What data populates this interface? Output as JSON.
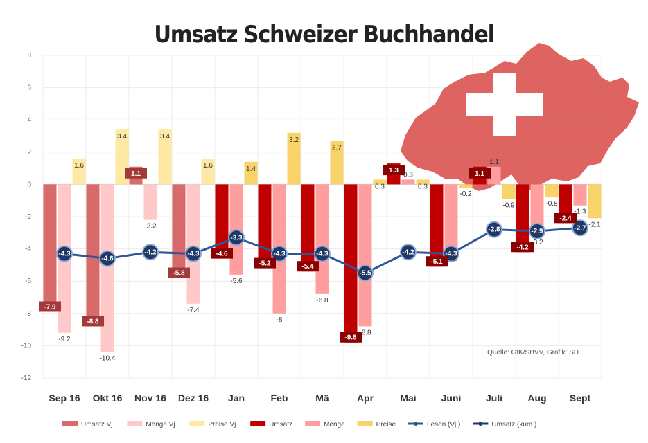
{
  "chart_data": {
    "type": "bar",
    "title": "Umsatz Schweizer Buchhandel",
    "source": "Quelle: GfK/SBVV, Grafik: SD",
    "categories": [
      "Sep 16",
      "Okt 16",
      "Nov 16",
      "Dez 16",
      "Jan",
      "Feb",
      "Mä",
      "Apr",
      "Mai",
      "Juni",
      "Juli",
      "Aug",
      "Sept"
    ],
    "ylim": [
      -12,
      8
    ],
    "yticks": [
      -12,
      -10,
      -8,
      -6,
      -4,
      -2,
      0,
      2,
      4,
      6,
      8
    ],
    "y2ticks": [
      "",
      "",
      "",
      "",
      "",
      "",
      "",
      "",
      "",
      "",
      ""
    ],
    "grid": true,
    "legend_position": "bottom",
    "colors": {
      "umsatz_prev": "#d96a6a",
      "menge_prev": "#ffc9c9",
      "preise_prev": "#fde8a4",
      "umsatz": "#c00000",
      "menge": "#ff9e9e",
      "preise": "#f8d36a",
      "line_prev": "#2f5597",
      "line": "#203864",
      "map": "#d9534f"
    },
    "series": [
      {
        "name": "Umsatz Vj.",
        "group": 0,
        "x": [
          "Sep 16",
          "Okt 16",
          "Nov 16",
          "Dez 16"
        ],
        "values": [
          -7.9,
          -8.8,
          1.1,
          -5.8
        ],
        "labels": [
          "-7.9",
          "-8.8",
          "1.1",
          "-5.8"
        ]
      },
      {
        "name": "Menge Vj.",
        "group": 1,
        "x": [
          "Sep 16",
          "Okt 16",
          "Nov 16",
          "Dez 16"
        ],
        "values": [
          -9.2,
          -10.4,
          -2.2,
          -7.4
        ],
        "labels": [
          "-9.2",
          "-10.4",
          "-2.2",
          "-7.4"
        ]
      },
      {
        "name": "Preise Vj.",
        "group": 2,
        "x": [
          "Sep 16",
          "Okt 16",
          "Nov 16",
          "Dez 16"
        ],
        "values": [
          1.6,
          3.4,
          3.4,
          1.6
        ],
        "labels": [
          "1.6",
          "3.4",
          "3.4",
          "1.6"
        ]
      },
      {
        "name": "Umsatz",
        "group": 0,
        "x": [
          "Jan",
          "Feb",
          "Mä",
          "Apr",
          "Mai",
          "Juni",
          "Juli",
          "Aug",
          "Sept"
        ],
        "values": [
          -4.6,
          -5.2,
          -5.4,
          -9.8,
          1.3,
          -5.1,
          1.1,
          -4.2,
          -2.4
        ],
        "labels": [
          "-4.6",
          "-5.2",
          "-5.4",
          "-9.8",
          "1.3",
          "-5.1",
          "1.1",
          "-4.2",
          "-2.4"
        ]
      },
      {
        "name": "Menge",
        "group": 1,
        "x": [
          "Jan",
          "Feb",
          "Mä",
          "Apr",
          "Mai",
          "Juni",
          "Juli",
          "Aug",
          "Sept"
        ],
        "values": [
          -5.6,
          -8.0,
          -6.8,
          -8.8,
          0.3,
          -4.2,
          1.1,
          -3.2,
          -1.3
        ],
        "labels": [
          "-5.6",
          "-8",
          "-6.8",
          "-8.8",
          "0.3",
          "-4.2",
          "1.1",
          "-3.2",
          "-1.3"
        ]
      },
      {
        "name": "Preise",
        "group": 2,
        "x": [
          "Jan",
          "Feb",
          "Mä",
          "Apr",
          "Mai",
          "Juni",
          "Juli",
          "Aug",
          "Sept"
        ],
        "values": [
          1.4,
          3.2,
          2.7,
          0.3,
          0.3,
          -0.2,
          -0.9,
          -0.8,
          -2.1
        ],
        "labels": [
          "1.4",
          "3.2",
          "2.7",
          "0.3",
          "0.3",
          "-0.2",
          "-0.9",
          "-0.8",
          "-2.1"
        ]
      },
      {
        "name": "Lesen (Vj.)",
        "type": "line",
        "x": [
          "Sep 16",
          "Okt 16",
          "Nov 16",
          "Dez 16"
        ],
        "values": [
          -4.3,
          -4.6,
          -4.2,
          -4.3
        ],
        "labels": [
          "-4.3",
          "-4.6",
          "-4.2",
          "-4.3"
        ]
      },
      {
        "name": "Umsatz (kum.)",
        "type": "line",
        "x": [
          "Jan",
          "Feb",
          "Mä",
          "Apr",
          "Mai",
          "Juni",
          "Juli",
          "Aug",
          "Sept"
        ],
        "values": [
          -3.3,
          -4.3,
          -4.3,
          -5.5,
          -4.2,
          -4.3,
          -2.8,
          -2.9,
          -2.7
        ],
        "labels": [
          "-3.3",
          "-4.3",
          "-4.3",
          "-5.5",
          "-4.2",
          "-4.3",
          "-2.8",
          "-2.9",
          "-2.7"
        ]
      }
    ],
    "legend": [
      "Umsatz Vj.",
      "Menge Vj.",
      "Preise Vj.",
      "Umsatz",
      "Menge",
      "Preise",
      "Lesen (Vj.)",
      "Umsatz (kum.)"
    ]
  }
}
